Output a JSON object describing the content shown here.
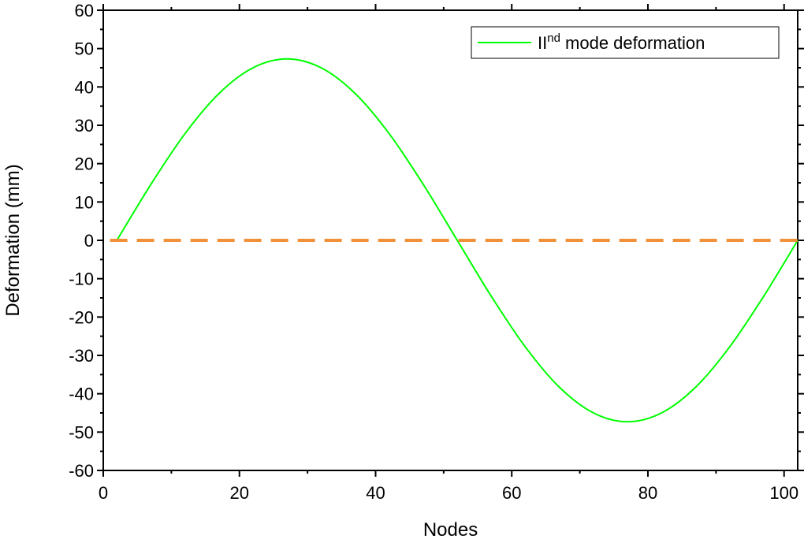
{
  "chart_data": {
    "type": "line",
    "xlabel": "Nodes",
    "ylabel": "Deformation (mm)",
    "xlim": [
      0,
      102
    ],
    "ylim": [
      -60,
      60
    ],
    "x_ticks": [
      "0",
      "20",
      "40",
      "60",
      "80",
      "100"
    ],
    "y_ticks": [
      "60",
      "50",
      "40",
      "30",
      "20",
      "10",
      "0",
      "-10",
      "-20",
      "-30",
      "-40",
      "-50",
      "-60"
    ],
    "grid": false,
    "legend": {
      "position": "top-right",
      "label_main": "II",
      "label_sup": "nd",
      "label_rest": " mode deformation"
    },
    "series": [
      {
        "name": "IInd mode deformation",
        "color": "#00ff00",
        "style": "solid",
        "x": [
          2,
          7,
          12,
          17,
          22,
          27,
          32,
          37,
          42,
          47,
          52,
          57,
          62,
          67,
          72,
          77,
          82,
          87,
          92,
          97,
          102
        ],
        "y": [
          0,
          14.6,
          27.8,
          38.3,
          45.0,
          47.3,
          45.0,
          38.3,
          27.8,
          14.6,
          0,
          -14.6,
          -27.8,
          -38.3,
          -45.0,
          -47.3,
          -45.0,
          -38.3,
          -27.8,
          -14.6,
          0
        ]
      },
      {
        "color": "#f0913a",
        "style": "dashed",
        "x": [
          1,
          102
        ],
        "y": [
          0,
          0
        ]
      }
    ]
  }
}
